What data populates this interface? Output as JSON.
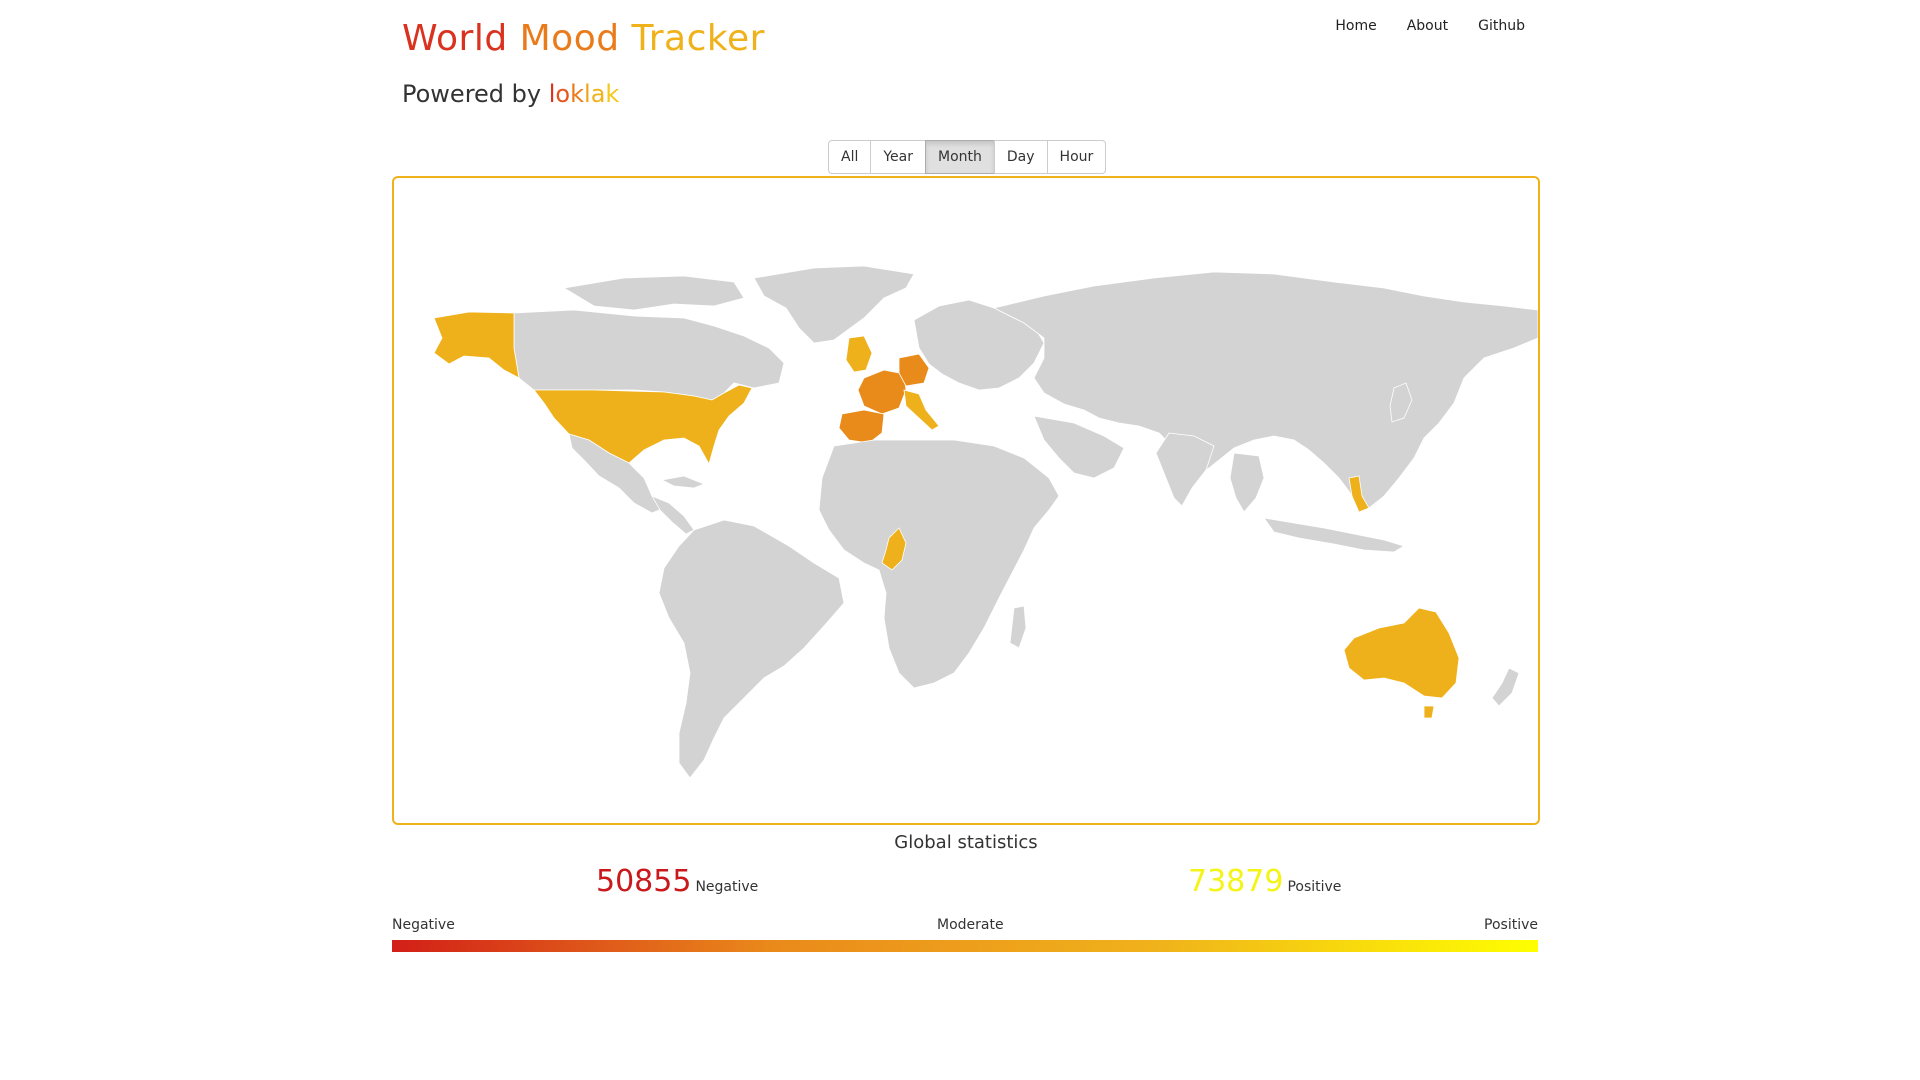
{
  "header": {
    "title_words": [
      "World",
      "Mood",
      "Tracker"
    ],
    "title_colors": [
      "#d9331f",
      "#ea7b1b",
      "#f0b21b"
    ],
    "subtitle_prefix": "Powered by",
    "brand_letters": [
      "l",
      "o",
      "k",
      "l",
      "a",
      "k"
    ],
    "brand_colors": [
      "#d9331f",
      "#e5561f",
      "#ea7b1b",
      "#f0a31b",
      "#f0b21b",
      "#f5c81b"
    ]
  },
  "nav": {
    "items": [
      "Home",
      "About",
      "Github"
    ]
  },
  "period_selector": {
    "options": [
      "All",
      "Year",
      "Month",
      "Day",
      "Hour"
    ],
    "selected": "Month"
  },
  "map": {
    "border_color": "#f0b21b",
    "land_color": "#d3d3d3",
    "mood_colors": {
      "negative": "#d21f18",
      "moderate": "#ea8a1b",
      "positive": "#ffff00"
    }
  },
  "stats": {
    "title": "Global statistics",
    "negative_value": "50855",
    "negative_label": "Negative",
    "negative_color": "#c9191c",
    "positive_value": "73879",
    "positive_label": "Positive",
    "positive_color": "#f4f418"
  },
  "legend": {
    "left": "Negative",
    "middle": "Moderate",
    "right": "Positive",
    "gradient": [
      "#d21f18",
      "#ea8a1b",
      "#f0b21b",
      "#ffff00"
    ]
  }
}
